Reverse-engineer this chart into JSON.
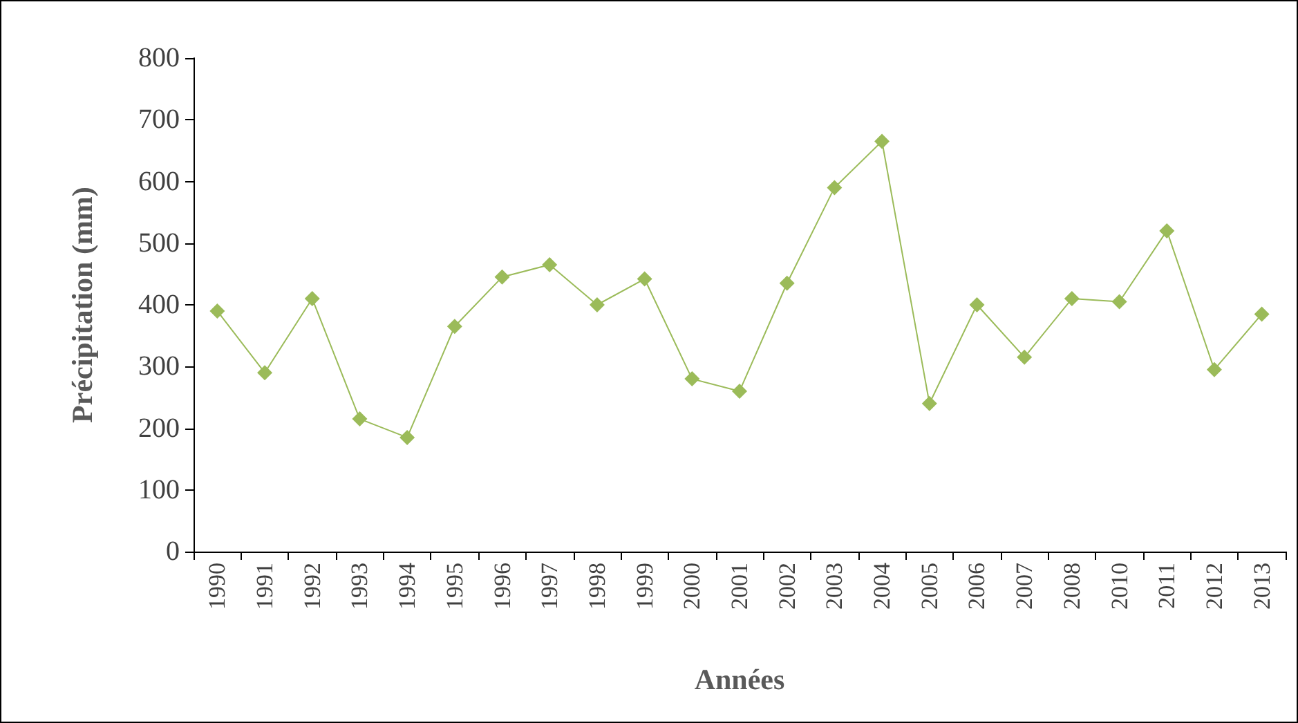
{
  "chart_data": {
    "type": "line",
    "xlabel": "Années",
    "ylabel": "Précipitation (mm)",
    "categories": [
      "1990",
      "1991",
      "1992",
      "1993",
      "1994",
      "1995",
      "1996",
      "1997",
      "1998",
      "1999",
      "2000",
      "2001",
      "2002",
      "2003",
      "2004",
      "2005",
      "2006",
      "2007",
      "2008",
      "2010",
      "2011",
      "2012",
      "2013"
    ],
    "series": [
      {
        "color": "#9bbb59",
        "values": [
          390,
          290,
          410,
          215,
          185,
          365,
          445,
          465,
          400,
          442,
          280,
          260,
          435,
          590,
          665,
          240,
          400,
          315,
          410,
          405,
          520,
          295,
          385
        ]
      }
    ],
    "ylim": [
      0,
      800
    ],
    "yticks": [
      0,
      100,
      200,
      300,
      400,
      500,
      600,
      700,
      800
    ],
    "grid": false,
    "marker": "diamond",
    "line_style": "solid"
  }
}
